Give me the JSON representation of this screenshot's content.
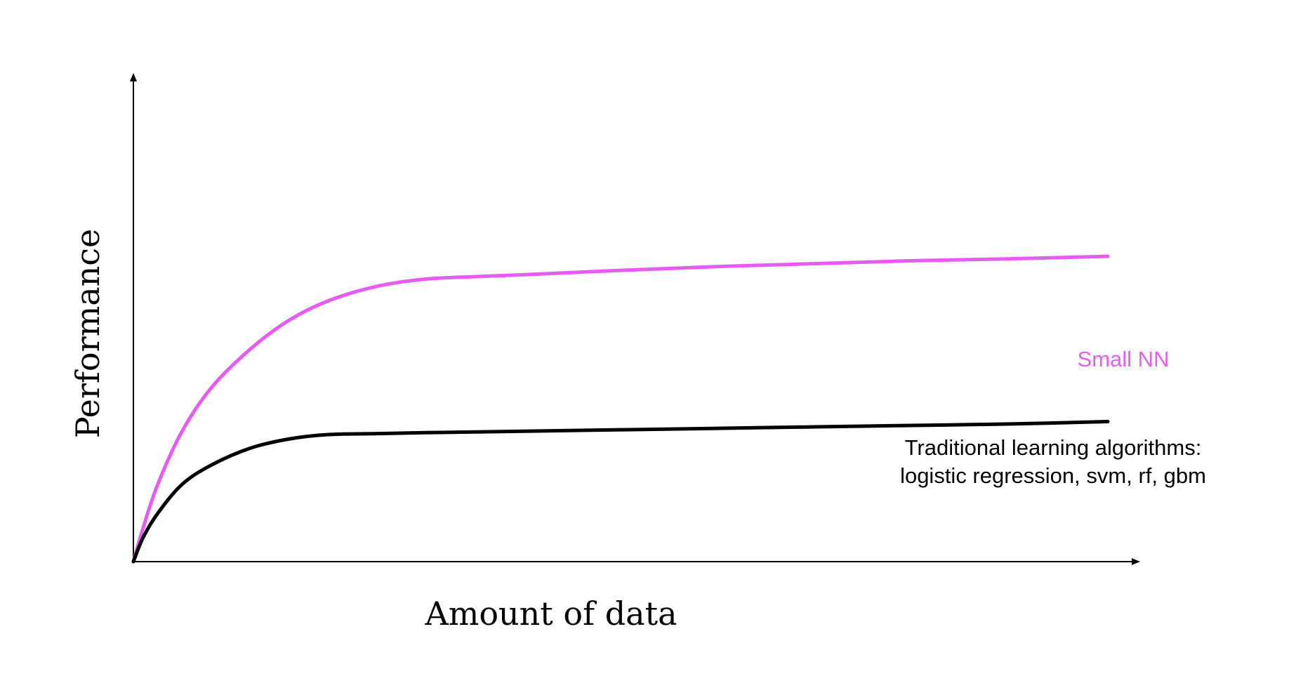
{
  "chart_data": {
    "type": "line",
    "title": "",
    "xlabel": "Amount of data",
    "ylabel": "Performance",
    "xlim": [
      0,
      1
    ],
    "ylim": [
      0,
      1
    ],
    "grid": false,
    "x_tick_labels": [],
    "y_tick_labels": [],
    "series": [
      {
        "name": "Small NN",
        "color": "#e65cf0",
        "x": [
          0,
          0.01,
          0.025,
          0.05,
          0.08,
          0.12,
          0.16,
          0.2,
          0.25,
          0.3,
          0.35,
          0.4,
          0.5,
          0.6,
          0.7,
          0.8,
          0.9,
          1.0
        ],
        "y": [
          0,
          0.07,
          0.16,
          0.27,
          0.36,
          0.44,
          0.5,
          0.54,
          0.57,
          0.585,
          0.59,
          0.594,
          0.603,
          0.611,
          0.617,
          0.623,
          0.627,
          0.632
        ]
      },
      {
        "name": "Traditional learning algorithms:\nlogistic regression, svm, rf, gbm",
        "color": "#000000",
        "x": [
          0,
          0.01,
          0.025,
          0.05,
          0.08,
          0.12,
          0.16,
          0.2,
          0.25,
          0.3,
          0.4,
          0.5,
          0.6,
          0.7,
          0.8,
          0.9,
          1.0
        ],
        "y": [
          0,
          0.05,
          0.1,
          0.16,
          0.2,
          0.235,
          0.254,
          0.263,
          0.265,
          0.267,
          0.27,
          0.273,
          0.276,
          0.279,
          0.282,
          0.285,
          0.29
        ]
      }
    ],
    "annotations": [
      {
        "text": "Small NN",
        "color": "#e65cf0",
        "series": 0
      },
      {
        "text": "Traditional learning algorithms:",
        "color": "#000000",
        "series": 1
      },
      {
        "text": "logistic regression, svm, rf, gbm",
        "color": "#000000",
        "series": 1
      }
    ]
  }
}
